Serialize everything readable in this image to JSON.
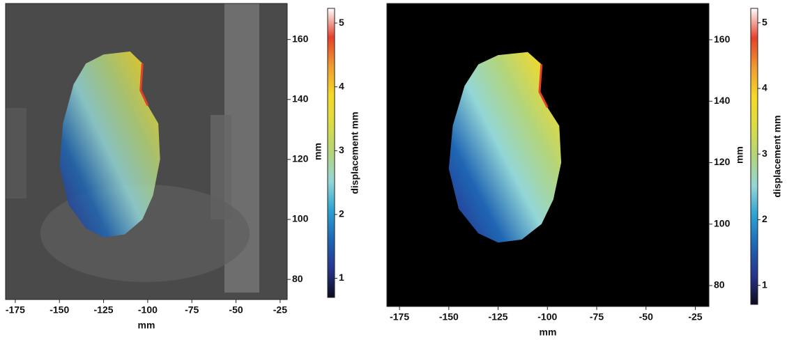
{
  "chart_data": [
    {
      "type": "image",
      "background": "#4a4a4a",
      "xlabel": "mm",
      "ylabel": "mm",
      "colorbar_label": "displacement mm",
      "xlim": [
        -180.5,
        -21
      ],
      "xticks": [
        -175,
        -150,
        -125,
        -100,
        -75,
        -50,
        -25
      ],
      "ylim": [
        73.3,
        172
      ],
      "yticks": [
        80,
        100,
        120,
        140,
        160
      ],
      "clim": [
        0.7,
        5.23
      ],
      "cticks": [
        1,
        2,
        3,
        4,
        5
      ],
      "colormap": [
        "#0c0c1e",
        "#27358e",
        "#1f66b4",
        "#2aa2d2",
        "#93d6d6",
        "#b3d57a",
        "#dbdc45",
        "#f5d928",
        "#f09c30",
        "#e5402a",
        "#ffffff"
      ]
    },
    {
      "type": "image",
      "background": "#000000",
      "xlabel": "mm",
      "ylabel": "mm",
      "colorbar_label": "displacement mm",
      "xlim": [
        -181.4,
        -18.1
      ],
      "xticks": [
        -175,
        -150,
        -125,
        -100,
        -75,
        -50,
        -25
      ],
      "ylim": [
        73.2,
        171.8
      ],
      "yticks": [
        80,
        100,
        120,
        140,
        160
      ],
      "clim": [
        0.71,
        5.22
      ],
      "cticks": [
        1,
        2,
        3,
        4,
        5
      ],
      "colormap": [
        "#0c0c1e",
        "#27358e",
        "#1f66b4",
        "#2aa2d2",
        "#93d6d6",
        "#b3d57a",
        "#dbdc45",
        "#f5d928",
        "#f09c30",
        "#e5402a",
        "#ffffff"
      ]
    }
  ]
}
